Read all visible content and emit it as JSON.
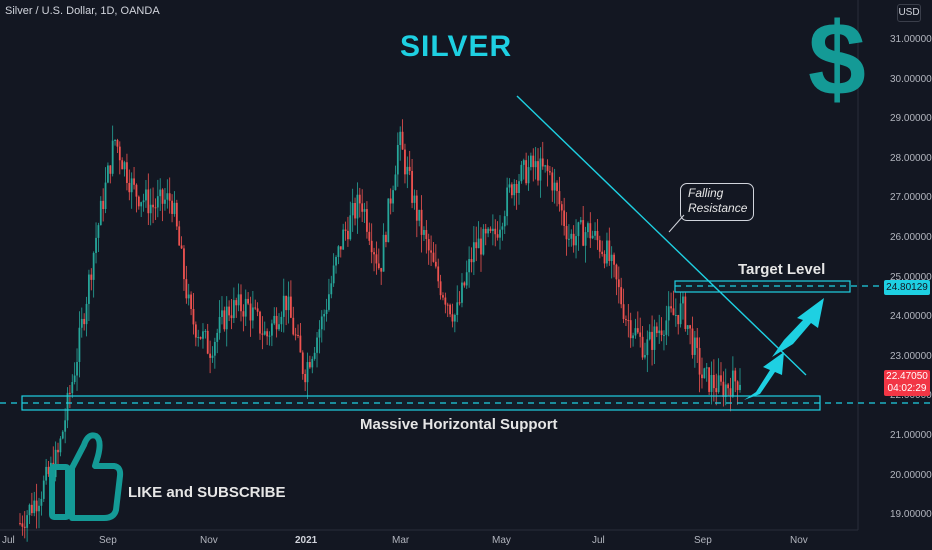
{
  "header": {
    "symbol": "Silver / U.S. Dollar, 1D, OANDA",
    "currency": "USD"
  },
  "annotations": {
    "title": "SILVER",
    "dollar_sign": "$",
    "target_level": "Target Level",
    "support": "Massive Horizontal Support",
    "like_subscribe": "LIKE and SUBSCRIBE",
    "bubble_line1": "Falling",
    "bubble_line2": "Resistance"
  },
  "price_tags": {
    "target": "24.80129",
    "current_price": "22.47050",
    "countdown": "04:02:29"
  },
  "colors": {
    "up": "#26a69a",
    "down": "#ef5350",
    "accent": "#1ed0e2",
    "background": "#131722"
  },
  "icons": [
    "thumbs-up-icon",
    "arrow-up-right-icon"
  ],
  "chart_data": {
    "type": "candlestick",
    "y_ticks": [
      "31.00000",
      "30.00000",
      "29.00000",
      "28.00000",
      "27.00000",
      "26.00000",
      "25.00000",
      "24.00000",
      "23.00000",
      "22.00000",
      "21.00000",
      "20.00000",
      "19.00000"
    ],
    "x_ticks": [
      "Jul",
      "Sep",
      "Nov",
      "2021",
      "Mar",
      "May",
      "Jul",
      "Sep",
      "Nov"
    ],
    "ylim": [
      18.6,
      31.8
    ],
    "support_zone": [
      21.7,
      22.0
    ],
    "target_zone": [
      24.6,
      24.9
    ],
    "target_level": 24.80129,
    "support_level": 21.85,
    "last_price": 22.4705,
    "resistance_line": {
      "start": [
        "2021-05",
        29.5
      ],
      "end": [
        "2021-11",
        22.5
      ]
    },
    "close_path": [
      {
        "x": "2020-07",
        "y": 18.8
      },
      {
        "x": "2020-07",
        "y": 19.5
      },
      {
        "x": "2020-07",
        "y": 20.5
      },
      {
        "x": "2020-07",
        "y": 23.0
      },
      {
        "x": "2020-08",
        "y": 26.0
      },
      {
        "x": "2020-08",
        "y": 28.5
      },
      {
        "x": "2020-08",
        "y": 27.2
      },
      {
        "x": "2020-08",
        "y": 26.8
      },
      {
        "x": "2020-09",
        "y": 27.0
      },
      {
        "x": "2020-09",
        "y": 24.0
      },
      {
        "x": "2020-09",
        "y": 23.2
      },
      {
        "x": "2020-10",
        "y": 24.2
      },
      {
        "x": "2020-10",
        "y": 24.3
      },
      {
        "x": "2020-11",
        "y": 23.5
      },
      {
        "x": "2020-11",
        "y": 24.5
      },
      {
        "x": "2020-11",
        "y": 22.6
      },
      {
        "x": "2020-12",
        "y": 24.0
      },
      {
        "x": "2020-12",
        "y": 26.0
      },
      {
        "x": "2021-01",
        "y": 27.0
      },
      {
        "x": "2021-01",
        "y": 25.2
      },
      {
        "x": "2021-02",
        "y": 28.5
      },
      {
        "x": "2021-02",
        "y": 26.5
      },
      {
        "x": "2021-03",
        "y": 25.0
      },
      {
        "x": "2021-03",
        "y": 24.0
      },
      {
        "x": "2021-04",
        "y": 25.8
      },
      {
        "x": "2021-04",
        "y": 26.0
      },
      {
        "x": "2021-05",
        "y": 27.4
      },
      {
        "x": "2021-05",
        "y": 27.8
      },
      {
        "x": "2021-06",
        "y": 27.6
      },
      {
        "x": "2021-06",
        "y": 26.0
      },
      {
        "x": "2021-07",
        "y": 26.2
      },
      {
        "x": "2021-07",
        "y": 25.6
      },
      {
        "x": "2021-08",
        "y": 24.0
      },
      {
        "x": "2021-08",
        "y": 23.2
      },
      {
        "x": "2021-08",
        "y": 23.9
      },
      {
        "x": "2021-09",
        "y": 24.2
      },
      {
        "x": "2021-09",
        "y": 22.5
      },
      {
        "x": "2021-09",
        "y": 22.2
      },
      {
        "x": "2021-09",
        "y": 22.47
      }
    ]
  }
}
